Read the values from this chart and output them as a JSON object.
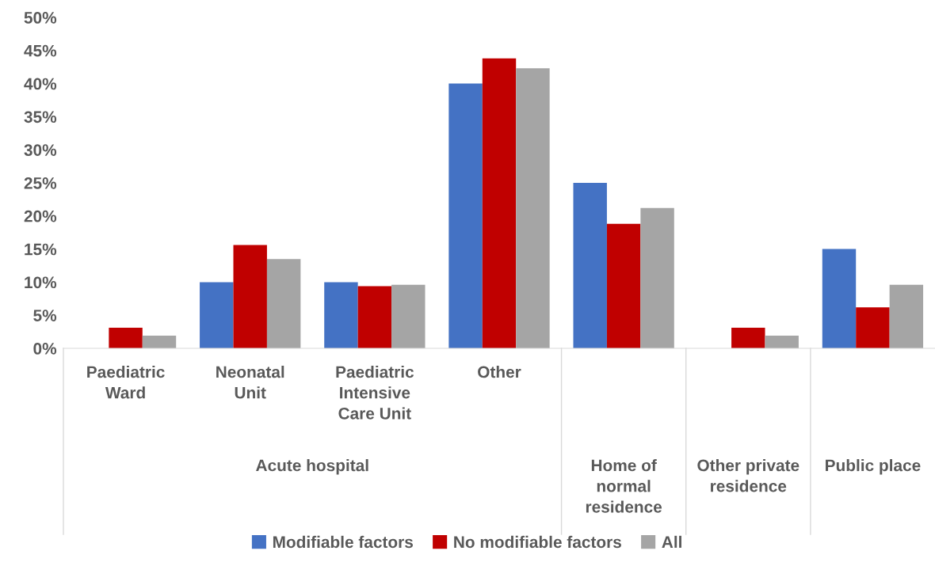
{
  "chart_data": {
    "type": "bar",
    "categories": [
      "Paediatric\nWard",
      "Neonatal\nUnit",
      "Paediatric\nIntensive\nCare Unit",
      "Other",
      "Home of\nnormal\nresidence",
      "Other private\nresidence",
      "Public place"
    ],
    "annotations": [
      "Acute hospital"
    ],
    "series": [
      {
        "name": "Modifiable factors",
        "color": "#4472c4",
        "values": [
          0,
          10.0,
          10.0,
          40.0,
          25.0,
          0,
          15.0
        ]
      },
      {
        "name": "No modifiable factors",
        "color": "#c00000",
        "values": [
          3.1,
          15.6,
          9.4,
          43.8,
          18.8,
          3.1,
          6.2
        ]
      },
      {
        "name": "All",
        "color": "#a5a5a5",
        "values": [
          1.9,
          13.5,
          9.6,
          42.3,
          21.2,
          1.9,
          9.6
        ]
      }
    ],
    "ylim": [
      0,
      50
    ],
    "yticks": [
      {
        "value": 0,
        "label": "0%"
      },
      {
        "value": 5,
        "label": "5%"
      },
      {
        "value": 10,
        "label": "10%"
      },
      {
        "value": 15,
        "label": "15%"
      },
      {
        "value": 20,
        "label": "20%"
      },
      {
        "value": 25,
        "label": "25%"
      },
      {
        "value": 30,
        "label": "30%"
      },
      {
        "value": 35,
        "label": "35%"
      },
      {
        "value": 40,
        "label": "40%"
      },
      {
        "value": 45,
        "label": "45%"
      },
      {
        "value": 50,
        "label": "50%"
      }
    ],
    "grid": false,
    "legend": "bottom"
  }
}
